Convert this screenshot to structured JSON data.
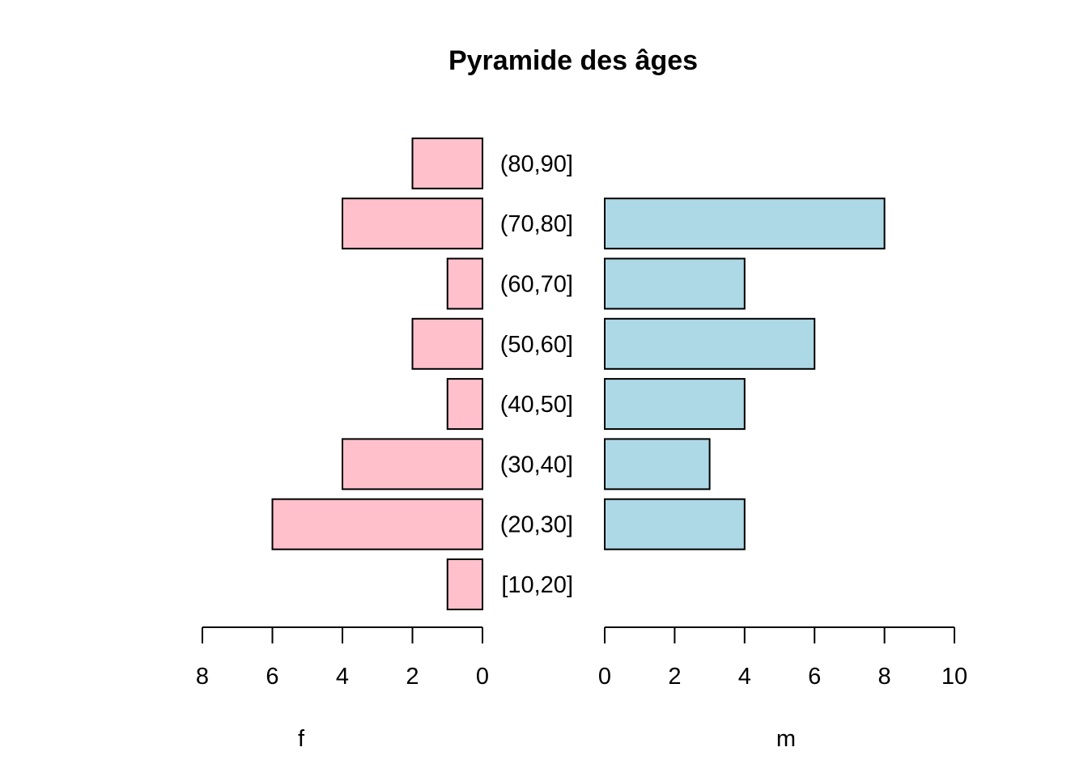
{
  "chart_data": {
    "type": "bar",
    "title": "Pyramide des âges",
    "categories": [
      "[10,20]",
      "(20,30]",
      "(30,40]",
      "(40,50]",
      "(50,60]",
      "(60,70]",
      "(70,80]",
      "(80,90]"
    ],
    "series": [
      {
        "name": "f",
        "values": [
          1,
          6,
          4,
          1,
          2,
          1,
          4,
          2
        ],
        "color": "#FFC0CB"
      },
      {
        "name": "m",
        "values": [
          0,
          4,
          3,
          4,
          6,
          4,
          8,
          0
        ],
        "color": "#ADD8E6"
      }
    ],
    "left_axis": {
      "label": "f",
      "ticks": [
        8,
        6,
        4,
        2,
        0
      ],
      "range": [
        0,
        8
      ],
      "direction": "reversed"
    },
    "right_axis": {
      "label": "m",
      "ticks": [
        0,
        2,
        4,
        6,
        8,
        10
      ],
      "range": [
        0,
        10
      ]
    },
    "grid": false,
    "legend": "none"
  }
}
